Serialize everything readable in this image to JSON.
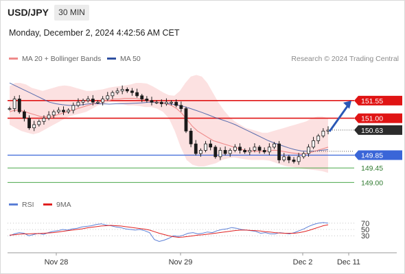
{
  "header": {
    "symbol": "USD/JPY",
    "timeframe": "30 MIN",
    "datetime": "Monday, December 2, 2024 4:42:56 AM CET"
  },
  "legend": {
    "ma20": "MA 20 + Bollinger Bands",
    "ma50": "MA 50",
    "ma20_color": "#ef8a8a",
    "ma50_color": "#2e4fa0",
    "credit": "Research © 2024 Trading Central"
  },
  "rsi_legend": {
    "rsi": "RSI",
    "ma9": "9MA",
    "rsi_color": "#5b7fd6",
    "ma9_color": "#e02020"
  },
  "chart_data": [
    {
      "type": "candlestick",
      "ylim": [
        148.75,
        152.55
      ],
      "x_ticks": [
        "Nov 28",
        "Nov 29",
        "Dec 2",
        "Dec 11"
      ],
      "current_price": 150.63,
      "resistance_levels": [
        151.55,
        151.0
      ],
      "support_levels": [
        149.85,
        149.45,
        149.0
      ],
      "colors": {
        "resistance": "#e01414",
        "support_main": "#3a66d8",
        "support_minor": "#2f9a2f",
        "candle_up": "#1a1a1a",
        "current": "#2b2b2b",
        "arrow": "#2a57b5"
      },
      "close": [
        151.3,
        151.6,
        151.2,
        151.0,
        150.7,
        150.8,
        150.9,
        151.0,
        151.1,
        151.2,
        151.25,
        151.2,
        151.25,
        151.4,
        151.5,
        151.55,
        151.6,
        151.5,
        151.5,
        151.6,
        151.7,
        151.8,
        151.85,
        151.9,
        151.85,
        151.8,
        151.7,
        151.6,
        151.55,
        151.5,
        151.5,
        151.45,
        151.5,
        151.5,
        151.4,
        151.3,
        150.6,
        150.2,
        149.9,
        150.0,
        150.2,
        150.1,
        149.8,
        150.0,
        149.9,
        150.0,
        150.1,
        150.0,
        149.95,
        150.0,
        150.1,
        150.0,
        149.95,
        150.1,
        150.2,
        149.7,
        149.8,
        149.7,
        149.65,
        149.8,
        149.9,
        150.1,
        150.3,
        150.45,
        150.6,
        150.63
      ],
      "ma20": [
        151.2,
        151.25,
        151.25,
        151.2,
        151.15,
        151.1,
        151.05,
        151.05,
        151.05,
        151.1,
        151.15,
        151.2,
        151.25,
        151.3,
        151.35,
        151.4,
        151.45,
        151.5,
        151.55,
        151.55,
        151.6,
        151.6,
        151.62,
        151.62,
        151.62,
        151.6,
        151.58,
        151.55,
        151.5,
        151.48,
        151.45,
        151.4,
        151.3,
        151.15,
        150.95,
        150.75,
        150.6,
        150.5,
        150.4,
        150.3,
        150.25,
        150.2,
        150.15,
        150.1,
        150.05,
        150.0,
        149.98,
        149.97,
        149.97,
        149.98,
        150.0,
        150.0,
        149.98,
        149.95,
        149.92,
        149.9,
        149.88,
        149.9,
        149.95,
        150.0,
        150.05,
        150.1
      ],
      "ma50": [
        152.1,
        152.0,
        151.9,
        151.8,
        151.7,
        151.6,
        151.5,
        151.45,
        151.42,
        151.4,
        151.4,
        151.42,
        151.45,
        151.45,
        151.45,
        151.44,
        151.45,
        151.45,
        151.46,
        151.47,
        151.48,
        151.5,
        151.5,
        151.48,
        151.45,
        151.42,
        151.38,
        151.32,
        151.25,
        151.18,
        151.1,
        151.02,
        150.95,
        150.88,
        150.8,
        150.7,
        150.6,
        150.5,
        150.4,
        150.3,
        150.22,
        150.15,
        150.08,
        150.02,
        149.98,
        149.97,
        149.98,
        150.0,
        150.02
      ],
      "bb_upper": [
        152.0,
        152.1,
        152.1,
        152.05,
        151.95,
        151.9,
        151.85,
        151.9,
        151.95,
        152.0,
        152.02,
        152.0,
        151.95,
        151.9,
        151.85,
        151.85,
        151.88,
        151.9,
        151.95,
        151.98,
        152.0,
        152.02,
        152.05,
        152.1,
        152.1,
        152.08,
        152.0,
        151.9,
        151.8,
        151.72,
        151.7,
        151.85,
        152.1,
        152.3,
        152.35,
        152.3,
        152.1,
        151.8,
        151.5,
        151.25,
        151.05,
        150.9,
        150.8,
        150.7,
        150.65,
        150.6,
        150.55,
        150.55,
        150.6,
        150.65,
        150.7,
        150.75,
        150.8,
        150.85,
        150.9,
        151.0,
        151.05,
        151.05,
        151.0
      ],
      "bb_lower": [
        150.8,
        150.7,
        150.6,
        150.55,
        150.5,
        150.55,
        150.65,
        150.75,
        150.85,
        150.95,
        151.05,
        151.1,
        151.15,
        151.2,
        151.3,
        151.4,
        151.45,
        151.5,
        151.5,
        151.45,
        151.4,
        151.4,
        151.38,
        151.35,
        151.35,
        151.3,
        151.2,
        151.0,
        150.6,
        150.1,
        149.7,
        149.55,
        149.5,
        149.5,
        149.55,
        149.6,
        149.7,
        149.75,
        149.78,
        149.75,
        149.72,
        149.7,
        149.7,
        149.7,
        149.68,
        149.62,
        149.55,
        149.5,
        149.48,
        149.45,
        149.42,
        149.4,
        149.38,
        149.35,
        149.3
      ]
    },
    {
      "type": "line",
      "ylim": [
        0,
        100
      ],
      "y_ticks": [
        70,
        50,
        30
      ],
      "series": [
        {
          "name": "RSI",
          "values": [
            30,
            36,
            40,
            38,
            30,
            34,
            38,
            34,
            40,
            44,
            46,
            50,
            48,
            52,
            54,
            58,
            60,
            62,
            66,
            68,
            64,
            62,
            58,
            56,
            52,
            50,
            48,
            50,
            46,
            40,
            18,
            12,
            16,
            22,
            30,
            28,
            32,
            38,
            40,
            36,
            38,
            42,
            40,
            46,
            50,
            52,
            56,
            54,
            50,
            48,
            46,
            44,
            38,
            40,
            36,
            36,
            40,
            38,
            36,
            40,
            46,
            52,
            60,
            66,
            70,
            72,
            70
          ]
        },
        {
          "name": "9MA",
          "values": [
            32,
            33,
            35,
            36,
            36,
            37,
            37,
            38,
            39,
            40,
            42,
            44,
            46,
            48,
            50,
            52,
            55,
            57,
            59,
            61,
            62,
            63,
            62,
            61,
            59,
            57,
            55,
            53,
            51,
            48,
            43,
            38,
            34,
            30,
            27,
            25,
            26,
            28,
            30,
            32,
            33,
            35,
            37,
            39,
            41,
            43,
            45,
            47,
            48,
            48,
            47,
            46,
            45,
            43,
            42,
            40,
            39,
            38,
            38,
            38,
            40,
            43,
            47,
            52,
            57,
            62,
            65
          ]
        }
      ]
    }
  ]
}
